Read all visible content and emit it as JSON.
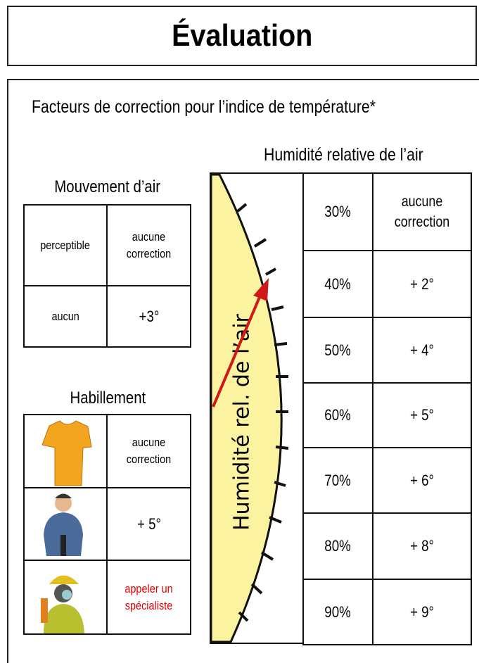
{
  "title": "Évaluation",
  "subtitle": "Facteurs de correction pour l’indice de température*",
  "air_movement": {
    "title": "Mouvement d’air",
    "rows": [
      [
        "perceptible",
        "aucune correction"
      ],
      [
        "aucun",
        "+3°"
      ]
    ]
  },
  "clothing": {
    "title": "Habillement",
    "rows": [
      "aucune correction",
      "+ 5°",
      "appeler un spécialiste"
    ]
  },
  "humidity": {
    "title": "Humidité relative de l’air",
    "gauge_label": "Humidité rel. de l’air",
    "rows": [
      [
        "30%",
        "aucune correction"
      ],
      [
        "40%",
        "+ 2°"
      ],
      [
        "50%",
        "+ 4°"
      ],
      [
        "60%",
        "+ 5°"
      ],
      [
        "70%",
        "+ 6°"
      ],
      [
        "80%",
        "+ 8°"
      ],
      [
        "90%",
        "+ 9°"
      ]
    ]
  }
}
